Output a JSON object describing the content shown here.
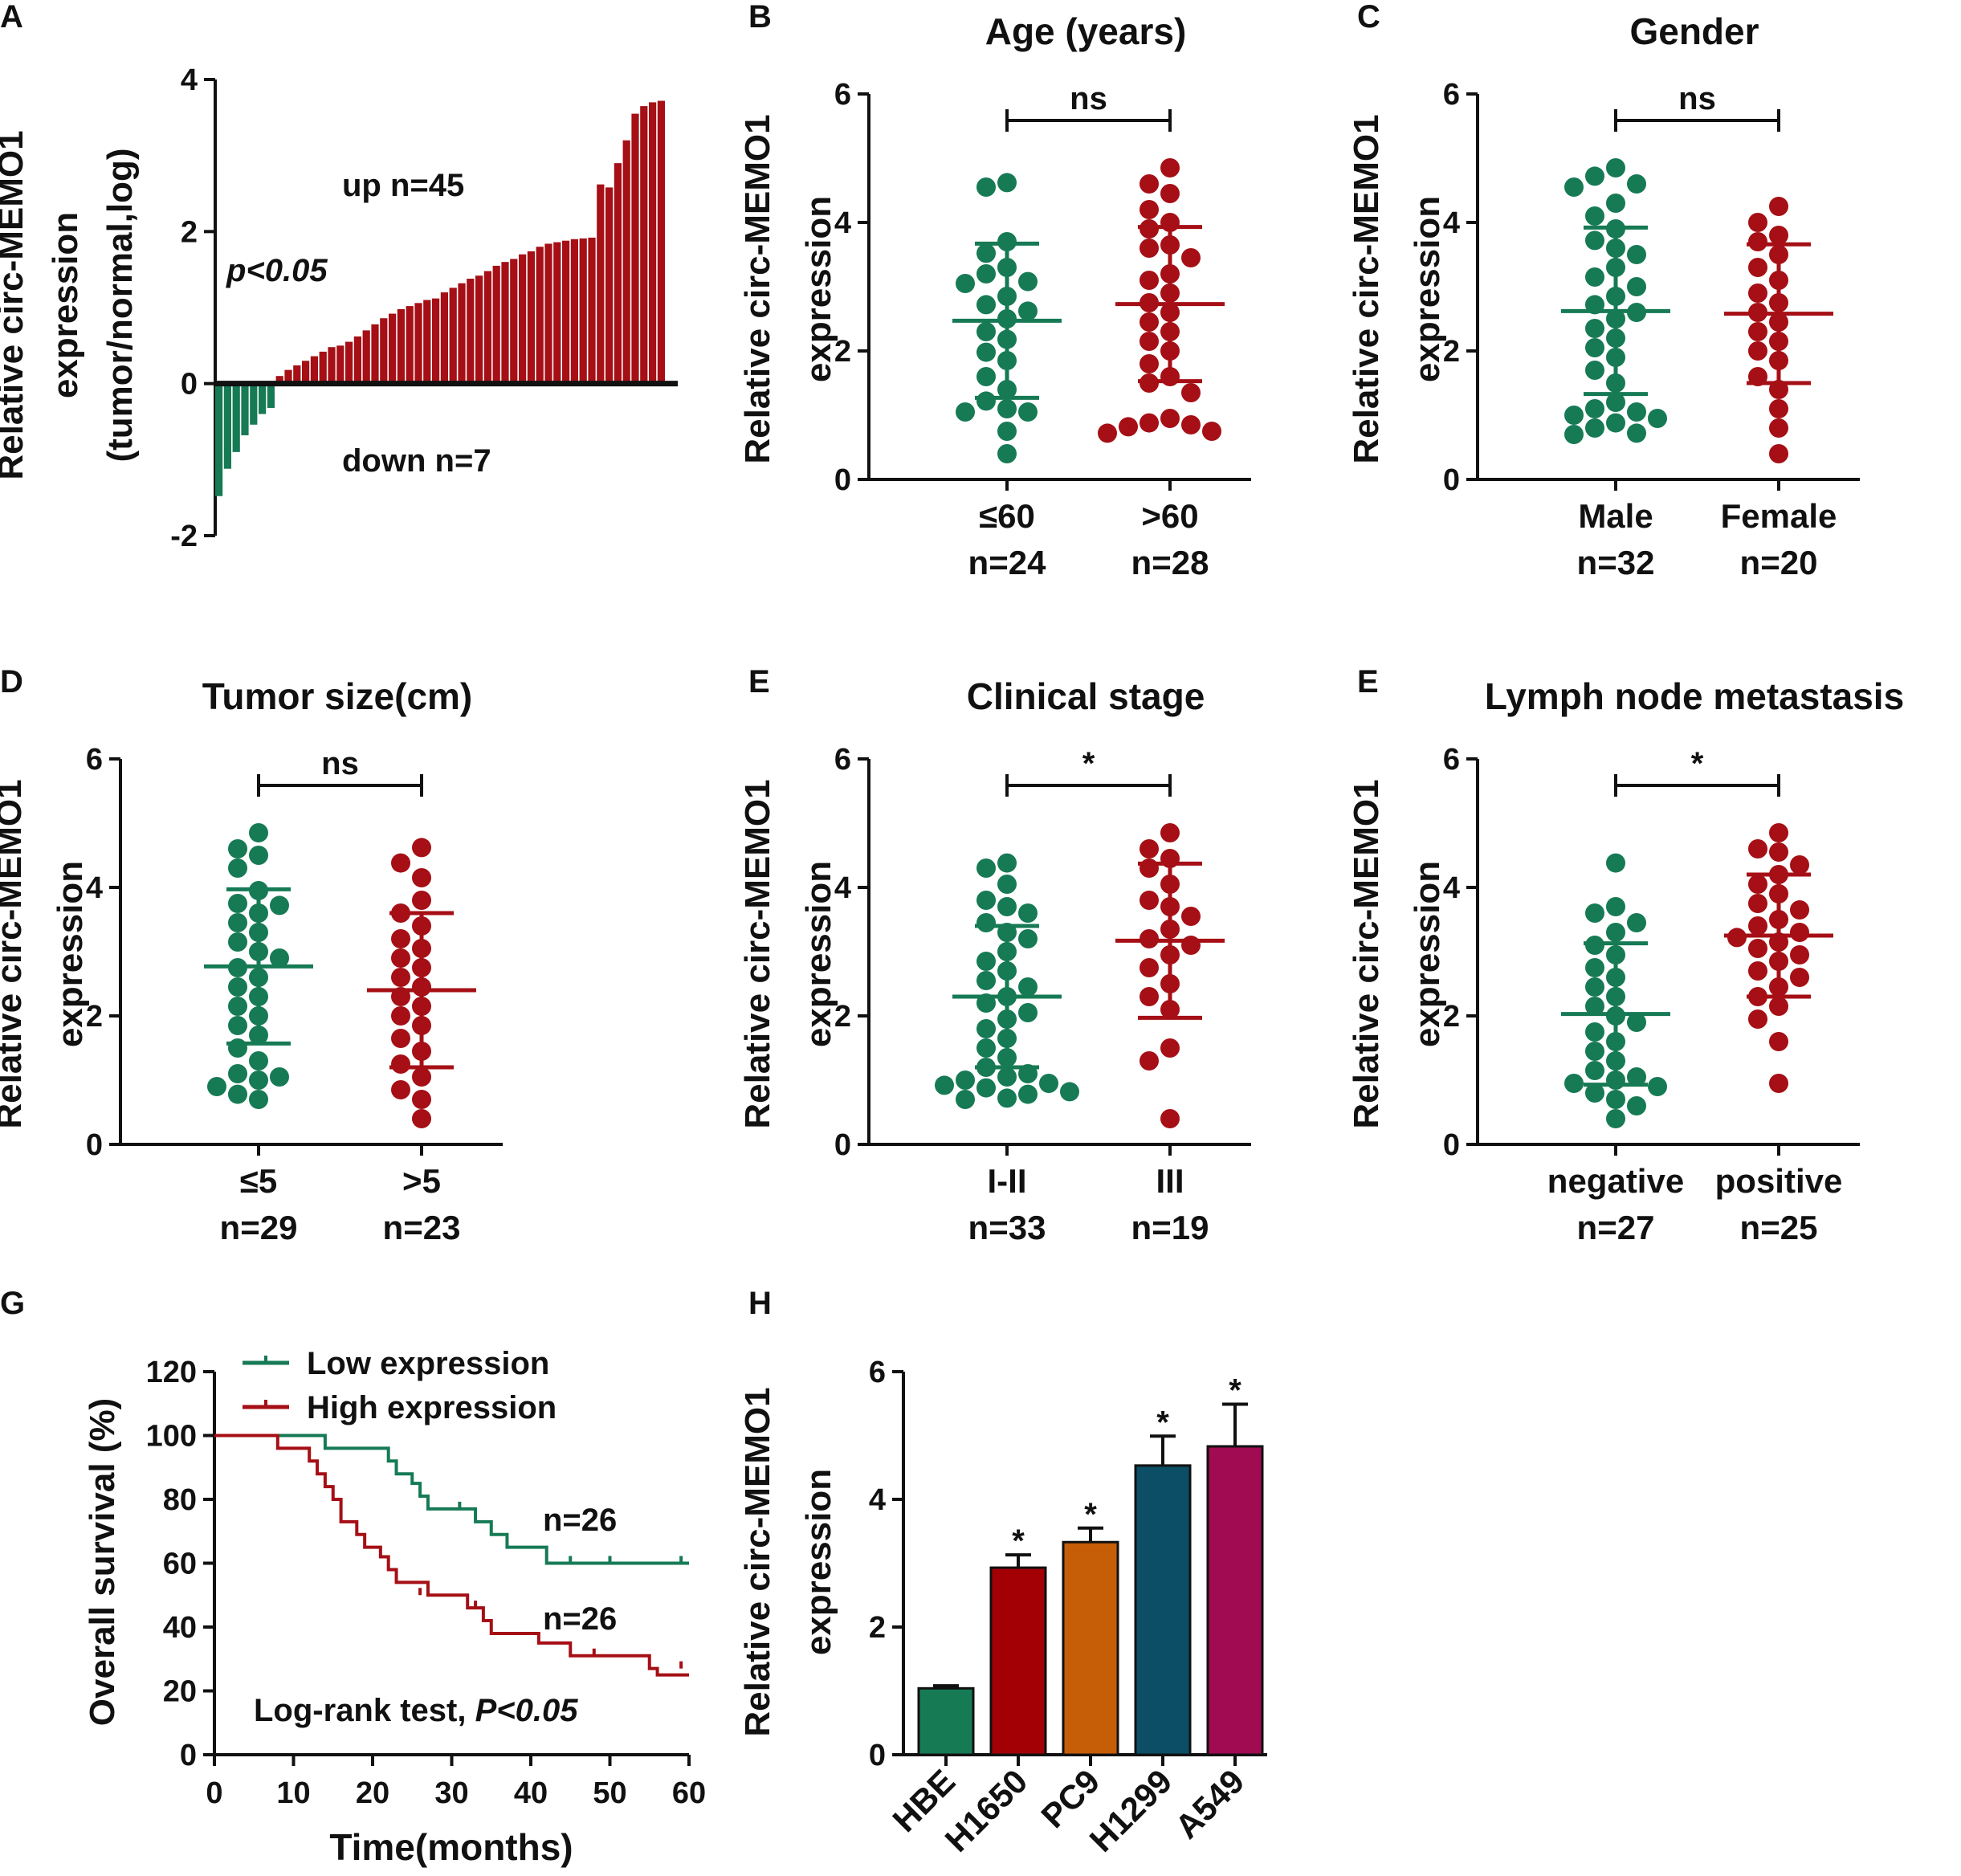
{
  "colors": {
    "green": "#167a55",
    "red": "#a50f15",
    "black": "#111111",
    "bar_H": [
      "#167a55",
      "#a30006",
      "#c55e06",
      "#0b4e66",
      "#a00b52"
    ]
  },
  "chart_data": [
    {
      "id": "A",
      "type": "bar",
      "panel_label": "A",
      "ylabel": [
        "Relative circ-MEMO1",
        "expression",
        "(tumor/normal,log)"
      ],
      "yticks": [
        -2,
        0,
        2,
        4
      ],
      "ylim": [
        -2,
        4
      ],
      "annotations": {
        "up": "up n=45",
        "down": "down n=7",
        "p": "p<0.05"
      },
      "values": [
        -1.48,
        -1.12,
        -0.9,
        -0.68,
        -0.54,
        -0.4,
        -0.32,
        0.1,
        0.18,
        0.24,
        0.3,
        0.36,
        0.42,
        0.48,
        0.5,
        0.55,
        0.62,
        0.7,
        0.78,
        0.86,
        0.92,
        0.98,
        1.02,
        1.06,
        1.1,
        1.12,
        1.2,
        1.26,
        1.32,
        1.38,
        1.42,
        1.48,
        1.55,
        1.6,
        1.64,
        1.7,
        1.74,
        1.8,
        1.84,
        1.86,
        1.88,
        1.9,
        1.91,
        1.92,
        2.62,
        2.58,
        2.9,
        3.2,
        3.55,
        3.65,
        3.7,
        3.72
      ]
    },
    {
      "id": "B",
      "type": "scatter",
      "panel_label": "B",
      "title": "Age (years)",
      "ylabel": [
        "Relative circ-MEMO1",
        "expression"
      ],
      "yticks": [
        0,
        2,
        4,
        6
      ],
      "ylim": [
        0,
        6
      ],
      "significance": "ns",
      "groups": [
        {
          "label": "≤60",
          "n_label": "n=24",
          "color": "green",
          "mean": 2.47,
          "sd_low": 1.27,
          "sd_high": 3.67,
          "values": [
            4.62,
            4.55,
            3.7,
            3.52,
            3.3,
            3.08,
            3.2,
            2.85,
            2.72,
            2.62,
            2.5,
            2.3,
            2.18,
            1.98,
            1.85,
            1.6,
            1.4,
            1.22,
            1.1,
            1.05,
            1.05,
            0.75,
            0.4,
            3.05
          ]
        },
        {
          "label": ">60",
          "n_label": "n=28",
          "color": "red",
          "mean": 2.73,
          "sd_low": 1.53,
          "sd_high": 3.93,
          "values": [
            4.85,
            4.6,
            4.45,
            4.2,
            4.0,
            3.9,
            3.65,
            3.6,
            3.45,
            3.2,
            3.1,
            2.9,
            2.75,
            2.6,
            2.45,
            2.3,
            2.15,
            2.0,
            1.8,
            1.6,
            1.5,
            1.35,
            0.95,
            0.88,
            0.82,
            0.75,
            0.72,
            0.85
          ]
        }
      ]
    },
    {
      "id": "C",
      "type": "scatter",
      "panel_label": "C",
      "title": "Gender",
      "ylabel": [
        "Relative circ-MEMO1",
        "expression"
      ],
      "yticks": [
        0,
        2,
        4,
        6
      ],
      "ylim": [
        0,
        6
      ],
      "significance": "ns",
      "groups": [
        {
          "label": "Male",
          "n_label": "n=32",
          "color": "green",
          "mean": 2.62,
          "sd_low": 1.33,
          "sd_high": 3.92,
          "values": [
            4.85,
            4.72,
            4.6,
            4.55,
            4.3,
            4.1,
            3.9,
            3.72,
            3.6,
            3.5,
            3.3,
            3.15,
            3.0,
            2.85,
            2.72,
            2.6,
            2.5,
            2.35,
            2.2,
            2.05,
            1.9,
            1.7,
            1.5,
            1.2,
            1.1,
            1.05,
            1.0,
            0.95,
            0.88,
            0.8,
            0.72,
            0.7
          ]
        },
        {
          "label": "Female",
          "n_label": "n=20",
          "color": "red",
          "mean": 2.58,
          "sd_low": 1.5,
          "sd_high": 3.66,
          "values": [
            4.25,
            4.0,
            3.8,
            3.7,
            3.5,
            3.3,
            3.1,
            2.9,
            2.75,
            2.6,
            2.45,
            2.3,
            2.15,
            2.0,
            1.85,
            1.6,
            1.4,
            1.1,
            0.8,
            0.4
          ]
        }
      ]
    },
    {
      "id": "D",
      "type": "scatter",
      "panel_label": "D",
      "title": "Tumor size(cm)",
      "ylabel": [
        "Relative circ-MEMO1",
        "expression"
      ],
      "yticks": [
        0,
        2,
        4,
        6
      ],
      "ylim": [
        0,
        6
      ],
      "significance": "ns",
      "groups": [
        {
          "label": "≤5",
          "n_label": "n=29",
          "color": "green",
          "mean": 2.77,
          "sd_low": 1.57,
          "sd_high": 3.97,
          "values": [
            4.85,
            4.6,
            4.5,
            4.3,
            3.95,
            3.75,
            3.72,
            3.6,
            3.45,
            3.3,
            3.15,
            3.0,
            2.9,
            2.75,
            2.6,
            2.45,
            2.3,
            2.15,
            2.0,
            1.85,
            1.7,
            1.5,
            1.3,
            1.1,
            1.05,
            1.0,
            0.9,
            0.78,
            0.7
          ]
        },
        {
          "label": ">5",
          "n_label": "n=23",
          "color": "red",
          "mean": 2.4,
          "sd_low": 1.2,
          "sd_high": 3.6,
          "values": [
            4.62,
            4.38,
            4.15,
            3.8,
            3.6,
            3.4,
            3.2,
            3.05,
            2.9,
            2.75,
            2.6,
            2.45,
            2.3,
            2.15,
            2.0,
            1.85,
            1.65,
            1.45,
            1.25,
            1.05,
            0.85,
            0.7,
            0.4
          ]
        }
      ]
    },
    {
      "id": "E1",
      "type": "scatter",
      "panel_label": "E",
      "title": "Clinical stage",
      "ylabel": [
        "Relative circ-MEMO1",
        "expression"
      ],
      "yticks": [
        0,
        2,
        4,
        6
      ],
      "ylim": [
        0,
        6
      ],
      "significance": "*",
      "groups": [
        {
          "label": "I-II",
          "n_label": "n=33",
          "color": "green",
          "mean": 2.3,
          "sd_low": 1.2,
          "sd_high": 3.4,
          "values": [
            4.38,
            4.3,
            4.05,
            3.8,
            3.7,
            3.6,
            3.45,
            3.3,
            3.2,
            3.0,
            2.85,
            2.7,
            2.55,
            2.45,
            2.3,
            2.2,
            2.05,
            1.95,
            1.8,
            1.65,
            1.5,
            1.35,
            1.2,
            1.1,
            1.05,
            1.0,
            0.95,
            0.92,
            0.88,
            0.82,
            0.78,
            0.72,
            0.7
          ]
        },
        {
          "label": "III",
          "n_label": "n=19",
          "color": "red",
          "mean": 3.17,
          "sd_low": 1.97,
          "sd_high": 4.37,
          "values": [
            4.85,
            4.6,
            4.45,
            4.3,
            4.05,
            3.8,
            3.7,
            3.55,
            3.35,
            3.2,
            3.1,
            2.95,
            2.75,
            2.5,
            2.3,
            2.1,
            1.5,
            1.3,
            0.4
          ]
        }
      ]
    },
    {
      "id": "E2",
      "type": "scatter",
      "panel_label": "E",
      "title": "Lymph node metastasis",
      "ylabel": [
        "Relative circ-MEMO1",
        "expression"
      ],
      "yticks": [
        0,
        2,
        4,
        6
      ],
      "ylim": [
        0,
        6
      ],
      "significance": "*",
      "groups": [
        {
          "label": "negative",
          "n_label": "n=27",
          "color": "green",
          "mean": 2.03,
          "sd_low": 0.93,
          "sd_high": 3.13,
          "values": [
            4.38,
            3.7,
            3.6,
            3.45,
            3.3,
            3.1,
            2.95,
            2.75,
            2.6,
            2.45,
            2.3,
            2.15,
            2.0,
            1.9,
            1.75,
            1.6,
            1.45,
            1.3,
            1.15,
            1.05,
            1.0,
            0.95,
            0.9,
            0.8,
            0.7,
            0.6,
            0.4
          ]
        },
        {
          "label": "positive",
          "n_label": "n=25",
          "color": "red",
          "mean": 3.25,
          "sd_low": 2.3,
          "sd_high": 4.2,
          "values": [
            4.85,
            4.6,
            4.55,
            4.35,
            4.2,
            4.05,
            3.9,
            3.75,
            3.65,
            3.5,
            3.4,
            3.3,
            3.22,
            3.15,
            3.05,
            2.95,
            2.85,
            2.7,
            2.6,
            2.45,
            2.3,
            2.15,
            1.95,
            1.6,
            0.95
          ]
        }
      ]
    },
    {
      "id": "G",
      "type": "line",
      "subtype": "kaplan-meier",
      "panel_label": "G",
      "xlabel": "Time(months)",
      "ylabel": "Overall survival (%)",
      "xticks": [
        0,
        10,
        20,
        30,
        40,
        50,
        60
      ],
      "yticks": [
        0,
        20,
        40,
        60,
        80,
        100,
        120
      ],
      "xlim": [
        0,
        60
      ],
      "ylim": [
        0,
        120
      ],
      "legend": [
        "Low expression",
        "High expression"
      ],
      "n_labels": [
        "n=26",
        "n=26"
      ],
      "test_text": "Log-rank test, ",
      "test_p": "P<0.05",
      "series": [
        {
          "name": "Low expression",
          "color": "green",
          "steps": [
            [
              0,
              100
            ],
            [
              14,
              96
            ],
            [
              22,
              92
            ],
            [
              23,
              88
            ],
            [
              25,
              85
            ],
            [
              26,
              81
            ],
            [
              27,
              77
            ],
            [
              33,
              73
            ],
            [
              35,
              69
            ],
            [
              37,
              65
            ],
            [
              42,
              60
            ],
            [
              60,
              60
            ]
          ],
          "censor": [
            [
              31,
              77
            ],
            [
              45,
              60
            ],
            [
              50,
              60
            ],
            [
              59,
              60
            ]
          ]
        },
        {
          "name": "High expression",
          "color": "red",
          "steps": [
            [
              0,
              100
            ],
            [
              8,
              96
            ],
            [
              12,
              92
            ],
            [
              13,
              88
            ],
            [
              14,
              84
            ],
            [
              15,
              80
            ],
            [
              16,
              73
            ],
            [
              18,
              69
            ],
            [
              19,
              65
            ],
            [
              21,
              62
            ],
            [
              22,
              58
            ],
            [
              23,
              54
            ],
            [
              27,
              50
            ],
            [
              32,
              46
            ],
            [
              34,
              42
            ],
            [
              35,
              38
            ],
            [
              41,
              35
            ],
            [
              45,
              31
            ],
            [
              55,
              27
            ],
            [
              56,
              25
            ],
            [
              60,
              25
            ]
          ],
          "censor": [
            [
              26,
              50
            ],
            [
              33,
              46
            ],
            [
              48,
              31
            ],
            [
              59,
              27
            ]
          ]
        }
      ]
    },
    {
      "id": "H",
      "type": "bar",
      "panel_label": "H",
      "ylabel": [
        "Relative circ-MEMO1",
        "expression"
      ],
      "yticks": [
        0,
        2,
        4,
        6
      ],
      "ylim": [
        0,
        6
      ],
      "categories": [
        "HBE",
        "H1650",
        "PC9",
        "H1299",
        "A549"
      ],
      "values": [
        1.04,
        2.93,
        3.33,
        4.53,
        4.83
      ],
      "errors": [
        0.04,
        0.2,
        0.22,
        0.46,
        0.66
      ],
      "significance": [
        "",
        "*",
        "*",
        "*",
        "*"
      ]
    }
  ]
}
